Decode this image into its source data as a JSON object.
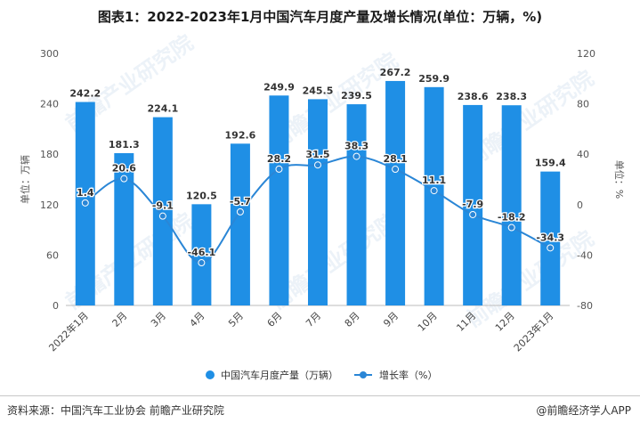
{
  "chart_data": {
    "type": "bar",
    "title": "图表1：2022-2023年1月中国汽车月度产量及增长情况(单位：万辆，%)",
    "categories": [
      "2022年1月",
      "2月",
      "3月",
      "4月",
      "5月",
      "6月",
      "7月",
      "8月",
      "9月",
      "10月",
      "11月",
      "12月",
      "2023年1月"
    ],
    "series": [
      {
        "name": "中国汽车月度产量（万辆）",
        "type": "bar",
        "axis": "left",
        "color": "#1f8fe5",
        "values": [
          242.2,
          181.3,
          224.1,
          120.5,
          192.6,
          249.9,
          245.5,
          239.5,
          267.2,
          259.9,
          238.6,
          238.3,
          159.4
        ],
        "labels": [
          "242.2",
          "181.3",
          "224.1",
          "120.5",
          "192.6",
          "249.9",
          "245.5",
          "239.5",
          "267.2",
          "259.9",
          "238.6",
          "238.3",
          "159.4"
        ]
      },
      {
        "name": "增长率（%）",
        "type": "line",
        "axis": "right",
        "color": "#2a86d6",
        "values": [
          1.4,
          20.6,
          -9.1,
          -46.1,
          -5.7,
          28.2,
          31.5,
          38.3,
          28.1,
          11.1,
          -7.9,
          -18.2,
          -34.3
        ],
        "labels": [
          "1.4",
          "20.6",
          "-9.1",
          "-46.1",
          "-5.7",
          "28.2",
          "31.5",
          "38.3",
          "28.1",
          "11.1",
          "-7.9",
          "-18.2",
          "-34.3"
        ]
      }
    ],
    "y_left": {
      "label": "单位：万辆",
      "range": [
        0,
        300
      ],
      "ticks": [
        "0",
        "60",
        "120",
        "180",
        "240",
        "300"
      ]
    },
    "y_right": {
      "label": "单位：%",
      "range": [
        -80,
        120
      ],
      "ticks": [
        "-80",
        "-40",
        "0",
        "40",
        "80",
        "120"
      ]
    },
    "grid": false,
    "legend_position": "bottom"
  },
  "watermark": "前瞻产业研究院",
  "source": "资料来源：中国汽车工业协会 前瞻产业研究院",
  "credit": "@前瞻经济学人APP"
}
